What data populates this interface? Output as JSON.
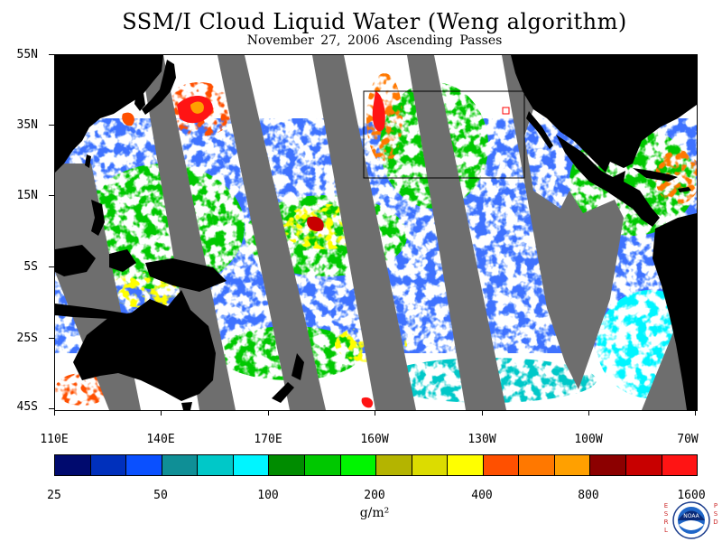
{
  "title": "SSM/I Cloud Liquid Water (Weng algorithm)",
  "subtitle": "November 27, 2006  Ascending Passes",
  "map": {
    "latitude_labels": [
      "55N",
      "35N",
      "15N",
      "5S",
      "25S",
      "45S"
    ],
    "longitude_labels": [
      "110E",
      "140E",
      "170E",
      "160W",
      "130W",
      "100W",
      "70W"
    ],
    "land_color": "#000000",
    "no_data_color": "#6e6e6e",
    "background_color": "#ffffff",
    "highlight_box_color": "#000000",
    "marker_color": "#ff0000"
  },
  "colorbar": {
    "colors": [
      "#000a6e",
      "#0030bc",
      "#0a50ff",
      "#0f8f96",
      "#00c8c8",
      "#00f5ff",
      "#008c00",
      "#00c800",
      "#00f500",
      "#b4b400",
      "#dcdc00",
      "#ffff00",
      "#ff5000",
      "#ff7800",
      "#ffa000",
      "#8c0000",
      "#c80000",
      "#ff1414"
    ],
    "tick_labels": [
      "25",
      "50",
      "100",
      "200",
      "400",
      "800",
      "1600"
    ],
    "units": "g/m²"
  },
  "logo": {
    "name": "noaa-logo",
    "text": "NOAA",
    "left_letters": [
      "E",
      "S",
      "R",
      "L"
    ],
    "right_letters": [
      "P",
      "S",
      "D"
    ]
  }
}
